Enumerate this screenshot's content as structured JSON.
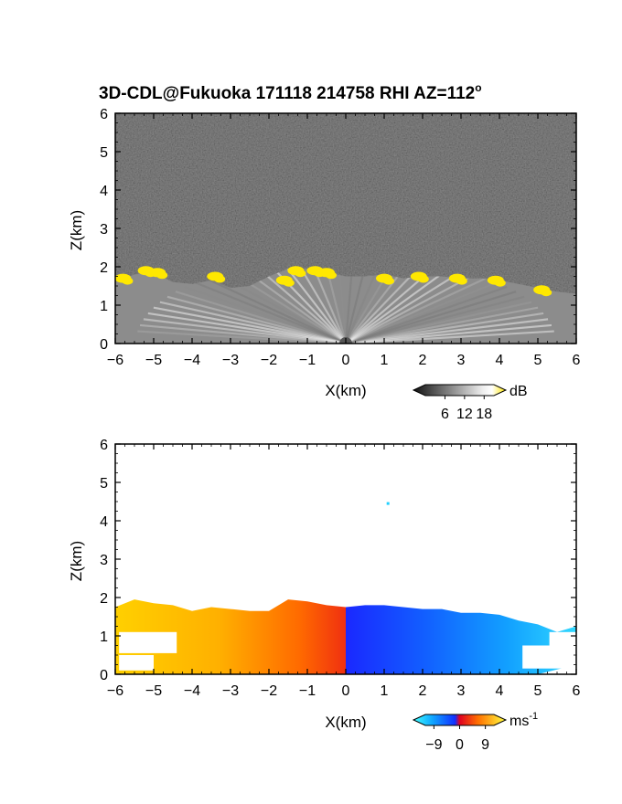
{
  "title": "3D-CDL@Fukuoka 171118 214758 RHI AZ=112",
  "title_degree": "o",
  "colors": {
    "sky_top": "#2b2b2b",
    "cloud_highlight": "#ffe800",
    "velocity_positive": [
      "#ffe600",
      "#ffb000",
      "#ff7000",
      "#f03000"
    ],
    "velocity_negative": [
      "#2030ff",
      "#1070ff",
      "#10b0ff",
      "#20e0ff"
    ]
  },
  "chart_data": [
    {
      "type": "heatmap",
      "name": "backscatter-dB",
      "xlabel": "X(km)",
      "ylabel": "Z(km)",
      "xlim": [
        -6,
        6
      ],
      "ylim": [
        0,
        6
      ],
      "xticks": [
        "-6",
        "-5",
        "-4",
        "-3",
        "-2",
        "-1",
        "0",
        "1",
        "2",
        "3",
        "4",
        "5",
        "6"
      ],
      "yticks": [
        "0",
        "1",
        "2",
        "3",
        "4",
        "5",
        "6"
      ],
      "colorbar": {
        "unit": "dB",
        "ticks": [
          "6",
          "12",
          "18"
        ],
        "range": [
          0,
          21
        ],
        "colors": [
          "#101010",
          "#ffffff",
          "#ffe800"
        ]
      },
      "boundary_layer_top_km": [
        [
          -6,
          1.6
        ],
        [
          -5.5,
          1.8
        ],
        [
          -5,
          1.85
        ],
        [
          -4.5,
          1.6
        ],
        [
          -4,
          1.55
        ],
        [
          -3.5,
          1.65
        ],
        [
          -3,
          1.45
        ],
        [
          -2.5,
          1.5
        ],
        [
          -2,
          1.75
        ],
        [
          -1.5,
          1.95
        ],
        [
          -1,
          1.95
        ],
        [
          -0.5,
          1.85
        ],
        [
          0,
          1.75
        ],
        [
          0.5,
          1.75
        ],
        [
          1,
          1.8
        ],
        [
          1.5,
          1.7
        ],
        [
          2,
          1.75
        ],
        [
          2.5,
          1.75
        ],
        [
          3,
          1.7
        ],
        [
          3.5,
          1.7
        ],
        [
          4,
          1.65
        ],
        [
          4.5,
          1.55
        ],
        [
          5,
          1.45
        ],
        [
          5.5,
          1.35
        ],
        [
          6,
          1.3
        ]
      ],
      "cloud_patches_km": [
        {
          "x": -5.8,
          "z": 1.7
        },
        {
          "x": -5.2,
          "z": 1.9
        },
        {
          "x": -4.9,
          "z": 1.85
        },
        {
          "x": -3.4,
          "z": 1.75
        },
        {
          "x": -1.6,
          "z": 1.65
        },
        {
          "x": -1.3,
          "z": 1.9
        },
        {
          "x": -0.8,
          "z": 1.9
        },
        {
          "x": -0.5,
          "z": 1.85
        },
        {
          "x": 1.0,
          "z": 1.7
        },
        {
          "x": 1.9,
          "z": 1.75
        },
        {
          "x": 2.9,
          "z": 1.7
        },
        {
          "x": 3.9,
          "z": 1.65
        },
        {
          "x": 5.1,
          "z": 1.4
        }
      ]
    },
    {
      "type": "heatmap",
      "name": "radial-velocity",
      "xlabel": "X(km)",
      "ylabel": "Z(km)",
      "xlim": [
        -6,
        6
      ],
      "ylim": [
        0,
        6
      ],
      "xticks": [
        "-6",
        "-5",
        "-4",
        "-3",
        "-2",
        "-1",
        "0",
        "1",
        "2",
        "3",
        "4",
        "5",
        "6"
      ],
      "yticks": [
        "0",
        "1",
        "2",
        "3",
        "4",
        "5",
        "6"
      ],
      "colorbar": {
        "unit": "ms",
        "unit_sup": "-1",
        "ticks": [
          "-9",
          "0",
          "9"
        ],
        "range": [
          -12,
          12
        ]
      },
      "echo_top_km": [
        [
          -6,
          1.75
        ],
        [
          -5.5,
          1.95
        ],
        [
          -5,
          1.85
        ],
        [
          -4.5,
          1.8
        ],
        [
          -4,
          1.65
        ],
        [
          -3.5,
          1.75
        ],
        [
          -3,
          1.7
        ],
        [
          -2.5,
          1.65
        ],
        [
          -2,
          1.65
        ],
        [
          -1.5,
          1.95
        ],
        [
          -1,
          1.9
        ],
        [
          -0.5,
          1.8
        ],
        [
          0,
          1.75
        ],
        [
          0.5,
          1.8
        ],
        [
          1,
          1.8
        ],
        [
          1.5,
          1.75
        ],
        [
          2,
          1.7
        ],
        [
          2.5,
          1.7
        ],
        [
          3,
          1.6
        ],
        [
          3.5,
          1.6
        ],
        [
          4,
          1.55
        ],
        [
          4.5,
          1.4
        ],
        [
          5,
          1.3
        ],
        [
          5.5,
          1.1
        ],
        [
          6,
          1.25
        ]
      ],
      "isolated_echo_km": {
        "x": 1.1,
        "z": 4.45
      }
    }
  ]
}
